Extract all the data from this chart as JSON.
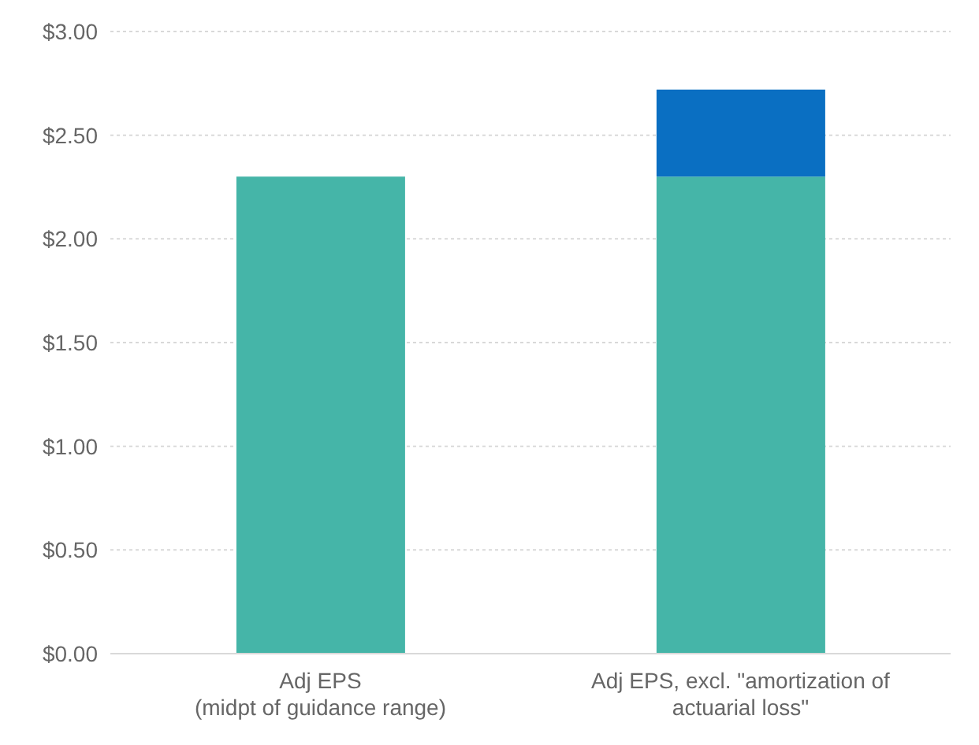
{
  "chart_data": {
    "type": "bar",
    "stacked": true,
    "categories": [
      "Adj EPS\n(midpt of guidance range)",
      "Adj EPS, excl. \"amortization of\nactuarial loss\""
    ],
    "series": [
      {
        "color": "#45b5a8",
        "values": [
          2.3,
          2.3
        ]
      },
      {
        "color": "#0a6fc2",
        "values": [
          null,
          0.42
        ]
      }
    ],
    "ylim": [
      0,
      3
    ],
    "yticks": [
      {
        "value": 0,
        "label": "$0.00"
      },
      {
        "value": 0.5,
        "label": "$0.50"
      },
      {
        "value": 1,
        "label": "$1.00"
      },
      {
        "value": 1.5,
        "label": "$1.50"
      },
      {
        "value": 2,
        "label": "$2.00"
      },
      {
        "value": 2.5,
        "label": "$2.50"
      },
      {
        "value": 3,
        "label": "$3.00"
      }
    ],
    "grid": "y",
    "legend": false
  }
}
